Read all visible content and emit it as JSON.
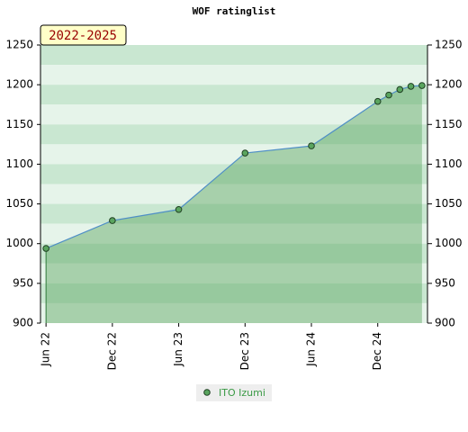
{
  "chart_data": {
    "type": "area",
    "title": "WOF ratinglist",
    "badge": "2022-2025",
    "x": [
      "2022-06",
      "2022-12",
      "2023-06",
      "2023-12",
      "2024-06",
      "2024-12",
      "2025-01",
      "2025-02",
      "2025-03",
      "2025-04"
    ],
    "series": [
      {
        "name": "ITO Izumi",
        "color": "#5aa55f",
        "line_color": "#4f8fc6",
        "values": [
          994,
          1029,
          1043,
          1114,
          1123,
          1179,
          1187,
          1194,
          1198,
          1199
        ]
      }
    ],
    "xlim": [
      "2022-06",
      "2025-04"
    ],
    "xticks": [
      {
        "value": "2022-06",
        "label": "Jun 22"
      },
      {
        "value": "2022-12",
        "label": "Dec 22"
      },
      {
        "value": "2023-06",
        "label": "Jun 23"
      },
      {
        "value": "2023-12",
        "label": "Dec 23"
      },
      {
        "value": "2024-06",
        "label": "Jun 24"
      },
      {
        "value": "2024-12",
        "label": "Dec 24"
      }
    ],
    "ylim": [
      900,
      1250
    ],
    "yticks": [
      900,
      950,
      1000,
      1050,
      1100,
      1150,
      1200,
      1250
    ],
    "right_axis": true
  }
}
